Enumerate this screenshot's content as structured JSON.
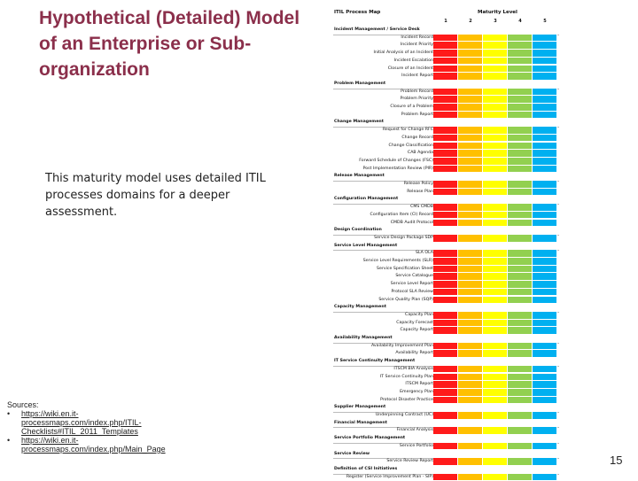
{
  "slide": {
    "title": "Hypothetical (Detailed) Model of an Enterprise or Sub-organization",
    "body": "This maturity model uses detailed ITIL processes domains for a deeper assessment.",
    "sources_label": "Sources:",
    "sources": [
      "https://wiki.en.it-processmaps.com/index.php/ITIL-Checklists#ITIL_2011_Templates",
      "https://wiki.en.it-processmaps.com/index.php/Main_Page"
    ],
    "page_number": "15"
  },
  "grid": {
    "title": "ITIL Process Map",
    "level_title": "Maturity Level",
    "levels": [
      "1",
      "2",
      "3",
      "4",
      "5"
    ],
    "colors": [
      "#ff1a1a",
      "#ffc000",
      "#ffff00",
      "#92d050",
      "#00b0f0"
    ],
    "rows": [
      {
        "label": "Incident Management / Service Desk",
        "section": true
      },
      {
        "label": "Incident Record",
        "section": false
      },
      {
        "label": "Incident Priority",
        "section": false
      },
      {
        "label": "Initial Analysis of an Incident",
        "section": false
      },
      {
        "label": "Incident Escalation",
        "section": false
      },
      {
        "label": "Closure of an Incident",
        "section": false
      },
      {
        "label": "Incident Report",
        "section": false
      },
      {
        "label": "Problem Management",
        "section": true
      },
      {
        "label": "Problem Record",
        "section": false
      },
      {
        "label": "Problem Priority",
        "section": false
      },
      {
        "label": "Closure of a Problem",
        "section": false
      },
      {
        "label": "Problem Report",
        "section": false
      },
      {
        "label": "Change Management",
        "section": true
      },
      {
        "label": "Request for Change RFC",
        "section": false
      },
      {
        "label": "Change Record",
        "section": false
      },
      {
        "label": "Change Classification",
        "section": false
      },
      {
        "label": "CAB Agenda",
        "section": false
      },
      {
        "label": "Forward Schedule of Changes (FSC)",
        "section": false
      },
      {
        "label": "Post Implementation Review (PIR)",
        "section": false
      },
      {
        "label": "Release Management",
        "section": true
      },
      {
        "label": "Release Policy",
        "section": false
      },
      {
        "label": "Release Plan",
        "section": false
      },
      {
        "label": "Configuration Management",
        "section": true
      },
      {
        "label": "CMS CMDB",
        "section": false
      },
      {
        "label": "Configuration Item (CI) Record",
        "section": false
      },
      {
        "label": "CMDB Audit Protocol",
        "section": false
      },
      {
        "label": "Design Coordination",
        "section": true
      },
      {
        "label": "Service Design Package SDP",
        "section": false
      },
      {
        "label": "Service Level Management",
        "section": true
      },
      {
        "label": "SLA OLA",
        "section": false
      },
      {
        "label": "Service Level Requirements (SLR)",
        "section": false
      },
      {
        "label": "Service Specification Sheet",
        "section": false
      },
      {
        "label": "Service Catalogue",
        "section": false
      },
      {
        "label": "Service Level Report",
        "section": false
      },
      {
        "label": "Protocol SLA Review",
        "section": false
      },
      {
        "label": "Service Quality Plan (SQP)",
        "section": false
      },
      {
        "label": "Capacity Management",
        "section": true
      },
      {
        "label": "Capacity Plan",
        "section": false
      },
      {
        "label": "Capacity Forecast",
        "section": false
      },
      {
        "label": "Capacity Report",
        "section": false
      },
      {
        "label": "Availability Management",
        "section": true
      },
      {
        "label": "Availability Improvement Plan",
        "section": false
      },
      {
        "label": "Availability Report",
        "section": false
      },
      {
        "label": "IT Service Continuity Management",
        "section": true
      },
      {
        "label": "ITSCM BIA Analysis",
        "section": false
      },
      {
        "label": "IT Service Continuity Plan",
        "section": false
      },
      {
        "label": "ITSCM Report",
        "section": false
      },
      {
        "label": "Emergency Plan",
        "section": false
      },
      {
        "label": "Protocol Disaster Practice",
        "section": false
      },
      {
        "label": "Supplier Management",
        "section": true
      },
      {
        "label": "Underpinning Contract (UC)",
        "section": false
      },
      {
        "label": "Financial Management",
        "section": true
      },
      {
        "label": "Financial Analysis",
        "section": false
      },
      {
        "label": "Service Portfolio Management",
        "section": true
      },
      {
        "label": "Service Portfolio",
        "section": false
      },
      {
        "label": "Service Review",
        "section": true
      },
      {
        "label": "Service Review Report",
        "section": false
      },
      {
        "label": "Definition of CSI Initiatives",
        "section": true
      },
      {
        "label": "Register (Service Improvement Plan - SIP)",
        "section": false
      }
    ]
  }
}
